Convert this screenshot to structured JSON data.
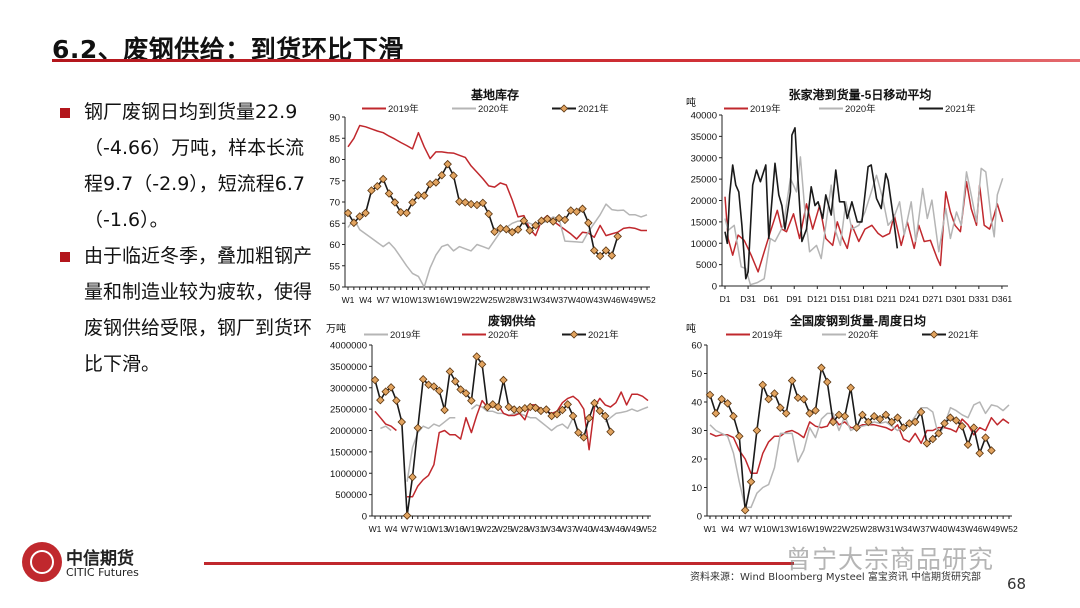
{
  "title": "6.2、废钢供给：到货环比下滑",
  "bullets": [
    "钢厂废钢日均到货量22.9（-4.66）万吨，样本长流程9.7（-2.9），短流程6.7（-1.6）。",
    "由于临近冬季，叠加粗钢产量和制造业较为疲软，使得废钢供给受限，钢厂到货环比下滑。"
  ],
  "footer": {
    "logo_cn": "中信期货",
    "logo_en": "CITIC Futures",
    "source": "资料来源：Wind Bloomberg Mysteel 富宝资讯 中信期货研究部",
    "page": "68",
    "watermark": "曾宁大宗商品研究"
  },
  "colors": {
    "red": "#c0282d",
    "grey": "#b5b5b5",
    "black": "#1a1a1a",
    "marker": "#e2a460"
  },
  "chart_data": [
    {
      "type": "line",
      "title": "基地库存",
      "ylabel": "",
      "ylim": [
        50,
        90
      ],
      "yticks": [
        "50",
        "55",
        "60",
        "65",
        "70",
        "75",
        "80",
        "85",
        "90"
      ],
      "xticks": [
        "W1",
        "W4",
        "W7",
        "W10",
        "W13",
        "W16",
        "W19",
        "W22",
        "W25",
        "W28",
        "W31",
        "W34",
        "W37",
        "W40",
        "W43",
        "W46",
        "W49",
        "W52"
      ],
      "legend": "top",
      "series": [
        {
          "name": "2019年",
          "color": "#c0282d",
          "values": [
            83,
            85,
            88,
            87.7,
            87.2,
            86.7,
            86.3,
            85.5,
            84.8,
            84,
            83.3,
            82.5,
            86.3,
            83,
            80.2,
            81.8,
            81.8,
            81.6,
            81.5,
            81,
            80.5,
            78.5,
            77,
            75.5,
            73.8,
            73.5,
            74.5,
            74,
            70.5,
            66.5,
            66.8,
            63.7,
            62.1,
            65.6,
            66.8,
            65.5,
            64.5,
            63.5,
            62.5,
            61.3,
            62.9,
            62.7,
            61.7,
            64.5,
            62.1,
            62.5,
            62.9,
            63.8,
            64,
            63.8,
            63.3,
            63.3
          ]
        },
        {
          "name": "2020年",
          "color": "#b5b5b5",
          "values": [
            64,
            66,
            63.5,
            62.5,
            61.5,
            60.5,
            59.5,
            60.5,
            59,
            57,
            55,
            53.2,
            52.5,
            50,
            54.5,
            57.5,
            59.5,
            60,
            58.5,
            59.5,
            59,
            58.5,
            60,
            59.5,
            59,
            61,
            63,
            64,
            65,
            65.5,
            65.5,
            65,
            64.5,
            65,
            65.5,
            66.5,
            66,
            60.8,
            60.7,
            60.6,
            60.5,
            63,
            65,
            67,
            69.5,
            68.2,
            68,
            68.1,
            67,
            67,
            66.5,
            67
          ]
        },
        {
          "name": "2021年",
          "color": "#1a1a1a",
          "marker": true,
          "values": [
            67.4,
            65.1,
            66.6,
            67.4,
            72.7,
            73.7,
            75.4,
            72,
            69.9,
            67.6,
            67.4,
            69.9,
            71.6,
            71.5,
            74.2,
            74.6,
            76.3,
            78.9,
            76.2,
            70.1,
            69.9,
            69.5,
            69.3,
            69.8,
            67.2,
            63,
            63.8,
            63.6,
            62.9,
            63.5,
            65.6,
            63.3,
            64.5,
            65.6,
            66,
            65.4,
            66.2,
            65.8,
            68,
            67.7,
            68.4,
            65.1,
            58.6,
            57.3,
            58.6,
            57.4,
            61.9
          ]
        }
      ]
    },
    {
      "type": "line",
      "title": "张家港到货量-5日移动平均",
      "ylabel": "吨",
      "ylim": [
        0,
        40000
      ],
      "xlim": [
        1,
        365
      ],
      "yticks": [
        "0",
        "5000",
        "10000",
        "15000",
        "20000",
        "25000",
        "30000",
        "35000",
        "40000"
      ],
      "xticks": [
        "D1",
        "D31",
        "D61",
        "D91",
        "D121",
        "D151",
        "D181",
        "D211",
        "D241",
        "D271",
        "D301",
        "D331",
        "D361"
      ],
      "legend": "top",
      "series": [
        {
          "name": "2019年",
          "color": "#c0282d",
          "x": [
            1,
            5,
            11,
            18,
            26,
            35,
            44,
            52,
            60,
            69,
            75,
            81,
            90,
            98,
            107,
            115,
            124,
            132,
            141,
            147,
            154,
            160,
            166,
            175,
            183,
            192,
            200,
            206,
            215,
            221,
            230,
            238,
            247,
            253,
            260,
            268,
            277,
            281,
            288,
            294,
            300,
            307,
            315,
            321,
            328,
            332,
            338,
            345,
            351,
            355,
            362
          ],
          "y": [
            20900,
            11100,
            7200,
            11900,
            10700,
            7200,
            3300,
            8000,
            12700,
            17700,
            13300,
            12700,
            16900,
            11100,
            19200,
            13300,
            18800,
            11100,
            9500,
            15000,
            11100,
            8800,
            14200,
            10400,
            13300,
            14200,
            12300,
            11500,
            12300,
            16600,
            9500,
            15000,
            8800,
            14200,
            10400,
            10700,
            6400,
            4800,
            22000,
            17300,
            14200,
            12700,
            24400,
            18100,
            14200,
            23600,
            14200,
            13300,
            16600,
            19200,
            15000
          ]
        },
        {
          "name": "2020年",
          "color": "#b5b5b5",
          "x": [
            1,
            5,
            13,
            22,
            28,
            34,
            43,
            52,
            60,
            66,
            77,
            86,
            94,
            99,
            105,
            111,
            120,
            126,
            132,
            139,
            145,
            151,
            158,
            166,
            175,
            183,
            198,
            206,
            213,
            220,
            228,
            234,
            243,
            249,
            258,
            264,
            270,
            279,
            288,
            294,
            302,
            308,
            315,
            321,
            328,
            334,
            340,
            347,
            351,
            355,
            362
          ],
          "y": [
            15800,
            13000,
            14200,
            4500,
            4100,
            300,
            800,
            1700,
            11100,
            10400,
            14200,
            25200,
            22000,
            30200,
            17300,
            8000,
            9500,
            6400,
            14200,
            23600,
            12700,
            9500,
            19700,
            13300,
            14200,
            17300,
            25900,
            20500,
            14200,
            15800,
            19700,
            11900,
            19700,
            10400,
            22800,
            15800,
            20100,
            8000,
            18100,
            11100,
            17300,
            14200,
            26700,
            21300,
            15000,
            27500,
            26700,
            15800,
            11500,
            21300,
            25200
          ]
        },
        {
          "name": "2021年",
          "color": "#1a1a1a",
          "x": [
            1,
            4,
            7,
            11,
            15,
            19,
            23,
            28,
            31,
            37,
            42,
            47,
            54,
            58,
            66,
            71,
            75,
            79,
            86,
            88,
            92,
            95,
            101,
            107,
            113,
            118,
            122,
            128,
            132,
            139,
            145,
            150,
            156,
            160,
            166,
            173,
            179,
            187,
            191,
            198,
            204,
            210,
            213,
            220,
            225
          ],
          "y": [
            12700,
            10000,
            21300,
            28300,
            23600,
            22000,
            14200,
            1700,
            3300,
            23600,
            27100,
            24400,
            28300,
            11100,
            28700,
            21300,
            18800,
            13300,
            22000,
            35300,
            37000,
            27500,
            10400,
            13300,
            23200,
            18800,
            19700,
            15800,
            21300,
            16600,
            27100,
            19700,
            19700,
            15800,
            19700,
            15000,
            15000,
            27900,
            28300,
            20500,
            18100,
            26300,
            24700,
            15800,
            8800
          ]
        }
      ]
    },
    {
      "type": "line",
      "title": "废钢供给",
      "ylabel": "万吨",
      "ylim": [
        0,
        4000000
      ],
      "yticks": [
        "0",
        "500000",
        "1000000",
        "1500000",
        "2000000",
        "2500000",
        "3000000",
        "3500000",
        "4000000"
      ],
      "xticks": [
        "W1",
        "W4",
        "W7",
        "W10",
        "W13",
        "W16",
        "W19",
        "W22",
        "W25",
        "W28",
        "W31",
        "W34",
        "W37",
        "W40",
        "W43",
        "W46",
        "W49",
        "W52"
      ],
      "legend": "top",
      "series": [
        {
          "name": "2019年",
          "color": "#b5b5b5",
          "values": [
            null,
            2050000,
            2100000,
            2000000,
            null,
            null,
            800000,
            1600000,
            1950000,
            2100000,
            2050000,
            2150000,
            2100000,
            2200000,
            2300000,
            2300000,
            null,
            null,
            2500000,
            2600000,
            2550000,
            2450000,
            2450000,
            2400000,
            2400000,
            2350000,
            2400000,
            2400000,
            2350000,
            2300000,
            2300000,
            2200000,
            2100000,
            2000000,
            2100000,
            2150000,
            2050000,
            2300000,
            null,
            null,
            null,
            null,
            null,
            2200000,
            2300000,
            2400000,
            2420000,
            2450000,
            2500000,
            2450000,
            2500000,
            2550000
          ]
        },
        {
          "name": "2020年",
          "color": "#c0282d",
          "values": [
            2450000,
            2300000,
            2150000,
            2100000,
            2000000,
            null,
            450000,
            450000,
            700000,
            850000,
            950000,
            1200000,
            1950000,
            2000000,
            1900000,
            1900000,
            1800000,
            2300000,
            1950000,
            2350000,
            2700000,
            2550000,
            2550000,
            2600000,
            2400000,
            2350000,
            2350000,
            2400000,
            2250000,
            2600000,
            2600000,
            2500000,
            2450000,
            2400000,
            2450000,
            2650000,
            2750000,
            2800000,
            2700000,
            2500000,
            1550000,
            2550000,
            2750000,
            2600000,
            2550000,
            2650000,
            2900000,
            2600000,
            2850000,
            2850000,
            2800000,
            2700000
          ]
        },
        {
          "name": "2021年",
          "color": "#1a1a1a",
          "marker": true,
          "values": [
            3180000,
            2710000,
            2910000,
            3010000,
            2700000,
            2200000,
            10000,
            910000,
            2060000,
            3200000,
            3070000,
            3030000,
            2930000,
            2480000,
            3380000,
            3150000,
            2960000,
            2870000,
            2700000,
            3730000,
            3550000,
            2550000,
            2610000,
            2550000,
            3180000,
            2550000,
            2490000,
            2480000,
            2520000,
            2550000,
            2530000,
            2460000,
            2490000,
            2340000,
            2380000,
            2480000,
            2610000,
            2340000,
            1950000,
            1840000,
            2290000,
            2640000,
            2460000,
            2340000,
            1970000
          ]
        }
      ]
    },
    {
      "type": "line",
      "title": "全国废钢到货量-周度日均",
      "ylabel": "吨",
      "ylim": [
        0,
        60
      ],
      "yticks": [
        "0",
        "10",
        "20",
        "30",
        "40",
        "50",
        "60"
      ],
      "xticks": [
        "W1",
        "W4",
        "W7",
        "W10",
        "W13",
        "W16",
        "W19",
        "W22",
        "W25",
        "W28",
        "W31",
        "W34",
        "W37",
        "W40",
        "W43",
        "W46",
        "W49",
        "W52"
      ],
      "legend": "top",
      "series": [
        {
          "name": "2019年",
          "color": "#c0282d",
          "values": [
            29,
            28,
            28.5,
            28.5,
            27.5,
            23,
            20,
            15,
            15,
            22,
            26,
            28,
            28,
            29.5,
            30,
            29,
            27.5,
            33,
            31.5,
            31,
            31.5,
            35,
            32,
            33,
            31,
            31,
            32,
            32,
            32,
            31.5,
            31,
            30,
            32,
            27,
            26,
            29,
            25.5,
            30,
            30,
            31,
            31,
            30.5,
            29.5,
            34,
            32,
            28.5,
            31,
            30,
            34.5,
            32,
            34,
            32.5
          ]
        },
        {
          "name": "2020年",
          "color": "#b5b5b5",
          "values": [
            32,
            30,
            29,
            28,
            22,
            12,
            3,
            3,
            8,
            10,
            11,
            17,
            29,
            29,
            29,
            19,
            23,
            31,
            27.5,
            34,
            36,
            36,
            30,
            35,
            30,
            31,
            31.5,
            32,
            33,
            32.5,
            33,
            31.5,
            30,
            31,
            32,
            35,
            38,
            38,
            36.5,
            28,
            32,
            38,
            37,
            35.5,
            34.5,
            39,
            40,
            36,
            39,
            38.5,
            37,
            39
          ]
        },
        {
          "name": "2021年",
          "color": "#1a1a1a",
          "marker": true,
          "values": [
            42.5,
            36,
            41,
            39.5,
            35,
            28,
            2,
            12,
            30,
            46,
            41,
            43,
            38,
            36,
            47.5,
            41.5,
            41,
            36,
            37,
            52,
            47,
            33,
            35.5,
            35,
            45,
            31,
            35.5,
            33,
            35,
            34,
            35.5,
            33,
            34.5,
            31,
            32.5,
            33,
            36.5,
            25.5,
            27,
            29,
            32.5,
            34.5,
            33.5,
            31.5,
            25,
            31,
            22,
            27.5,
            23
          ]
        }
      ]
    }
  ]
}
